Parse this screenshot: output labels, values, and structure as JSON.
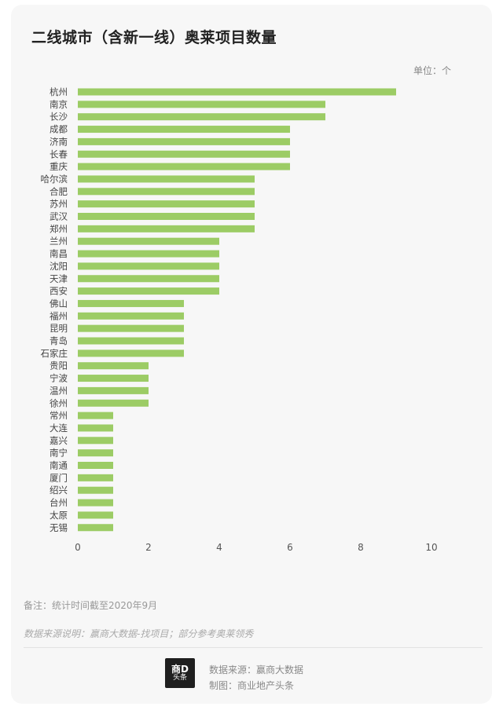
{
  "header": {
    "title": "二线城市（含新一线）奥莱项目数量",
    "unit": "单位：个"
  },
  "chart_data": {
    "type": "bar",
    "orientation": "horizontal",
    "title": "二线城市（含新一线）奥莱项目数量",
    "categories": [
      "杭州",
      "南京",
      "长沙",
      "成都",
      "济南",
      "长春",
      "重庆",
      "哈尔滨",
      "合肥",
      "苏州",
      "武汉",
      "郑州",
      "兰州",
      "南昌",
      "沈阳",
      "天津",
      "西安",
      "佛山",
      "福州",
      "昆明",
      "青岛",
      "石家庄",
      "贵阳",
      "宁波",
      "温州",
      "徐州",
      "常州",
      "大连",
      "嘉兴",
      "南宁",
      "南通",
      "厦门",
      "绍兴",
      "台州",
      "太原",
      "无锡"
    ],
    "values": [
      9,
      7,
      7,
      6,
      6,
      6,
      6,
      5,
      5,
      5,
      5,
      5,
      4,
      4,
      4,
      4,
      4,
      3,
      3,
      3,
      3,
      3,
      2,
      2,
      2,
      2,
      1,
      1,
      1,
      1,
      1,
      1,
      1,
      1,
      1,
      1
    ],
    "xlim": [
      0,
      10
    ],
    "xticks": [
      0,
      2,
      4,
      6,
      8,
      10
    ],
    "bar_color": "#9ccc65",
    "grid": false
  },
  "notes": {
    "remark": "备注：统计时间截至2020年9月",
    "source_explanation": "数据来源说明：赢商大数据-找项目；部分参考奥莱领秀"
  },
  "footer": {
    "logo_top": "商D",
    "logo_bottom": "头条",
    "data_source": "数据来源：赢商大数据",
    "made_by": "制图：商业地产头条"
  }
}
